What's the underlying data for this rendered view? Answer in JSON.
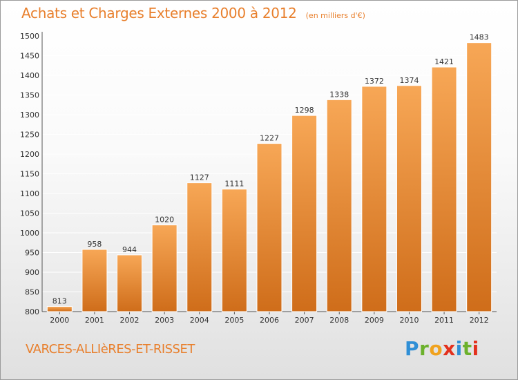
{
  "header": {
    "title": "Achats et Charges Externes 2000 à 2012",
    "subtitle": "(en milliers d'€)"
  },
  "footer": {
    "place": "VARCES-ALLIèRES-ET-RISSET",
    "logo": {
      "letters": [
        "P",
        "r",
        "o",
        "x",
        "i",
        "t",
        "i"
      ]
    }
  },
  "colors": {
    "bar_light": "#f7a756",
    "bar_dark": "#cf6d1a",
    "accent": "#e87f2c",
    "grid": "#ffffff"
  },
  "chart_data": {
    "type": "bar",
    "title": "Achats et Charges Externes 2000 à 2012",
    "subtitle": "(en milliers d'€)",
    "xlabel": "",
    "ylabel": "",
    "categories": [
      "2000",
      "2001",
      "2002",
      "2003",
      "2004",
      "2005",
      "2006",
      "2007",
      "2008",
      "2009",
      "2010",
      "2011",
      "2012"
    ],
    "values": [
      813,
      958,
      944,
      1020,
      1127,
      1111,
      1227,
      1298,
      1338,
      1372,
      1374,
      1421,
      1483
    ],
    "ylim": [
      800,
      1500
    ],
    "yticks": [
      800,
      850,
      900,
      950,
      1000,
      1050,
      1100,
      1150,
      1200,
      1250,
      1300,
      1350,
      1400,
      1450,
      1500
    ],
    "grid": true
  }
}
